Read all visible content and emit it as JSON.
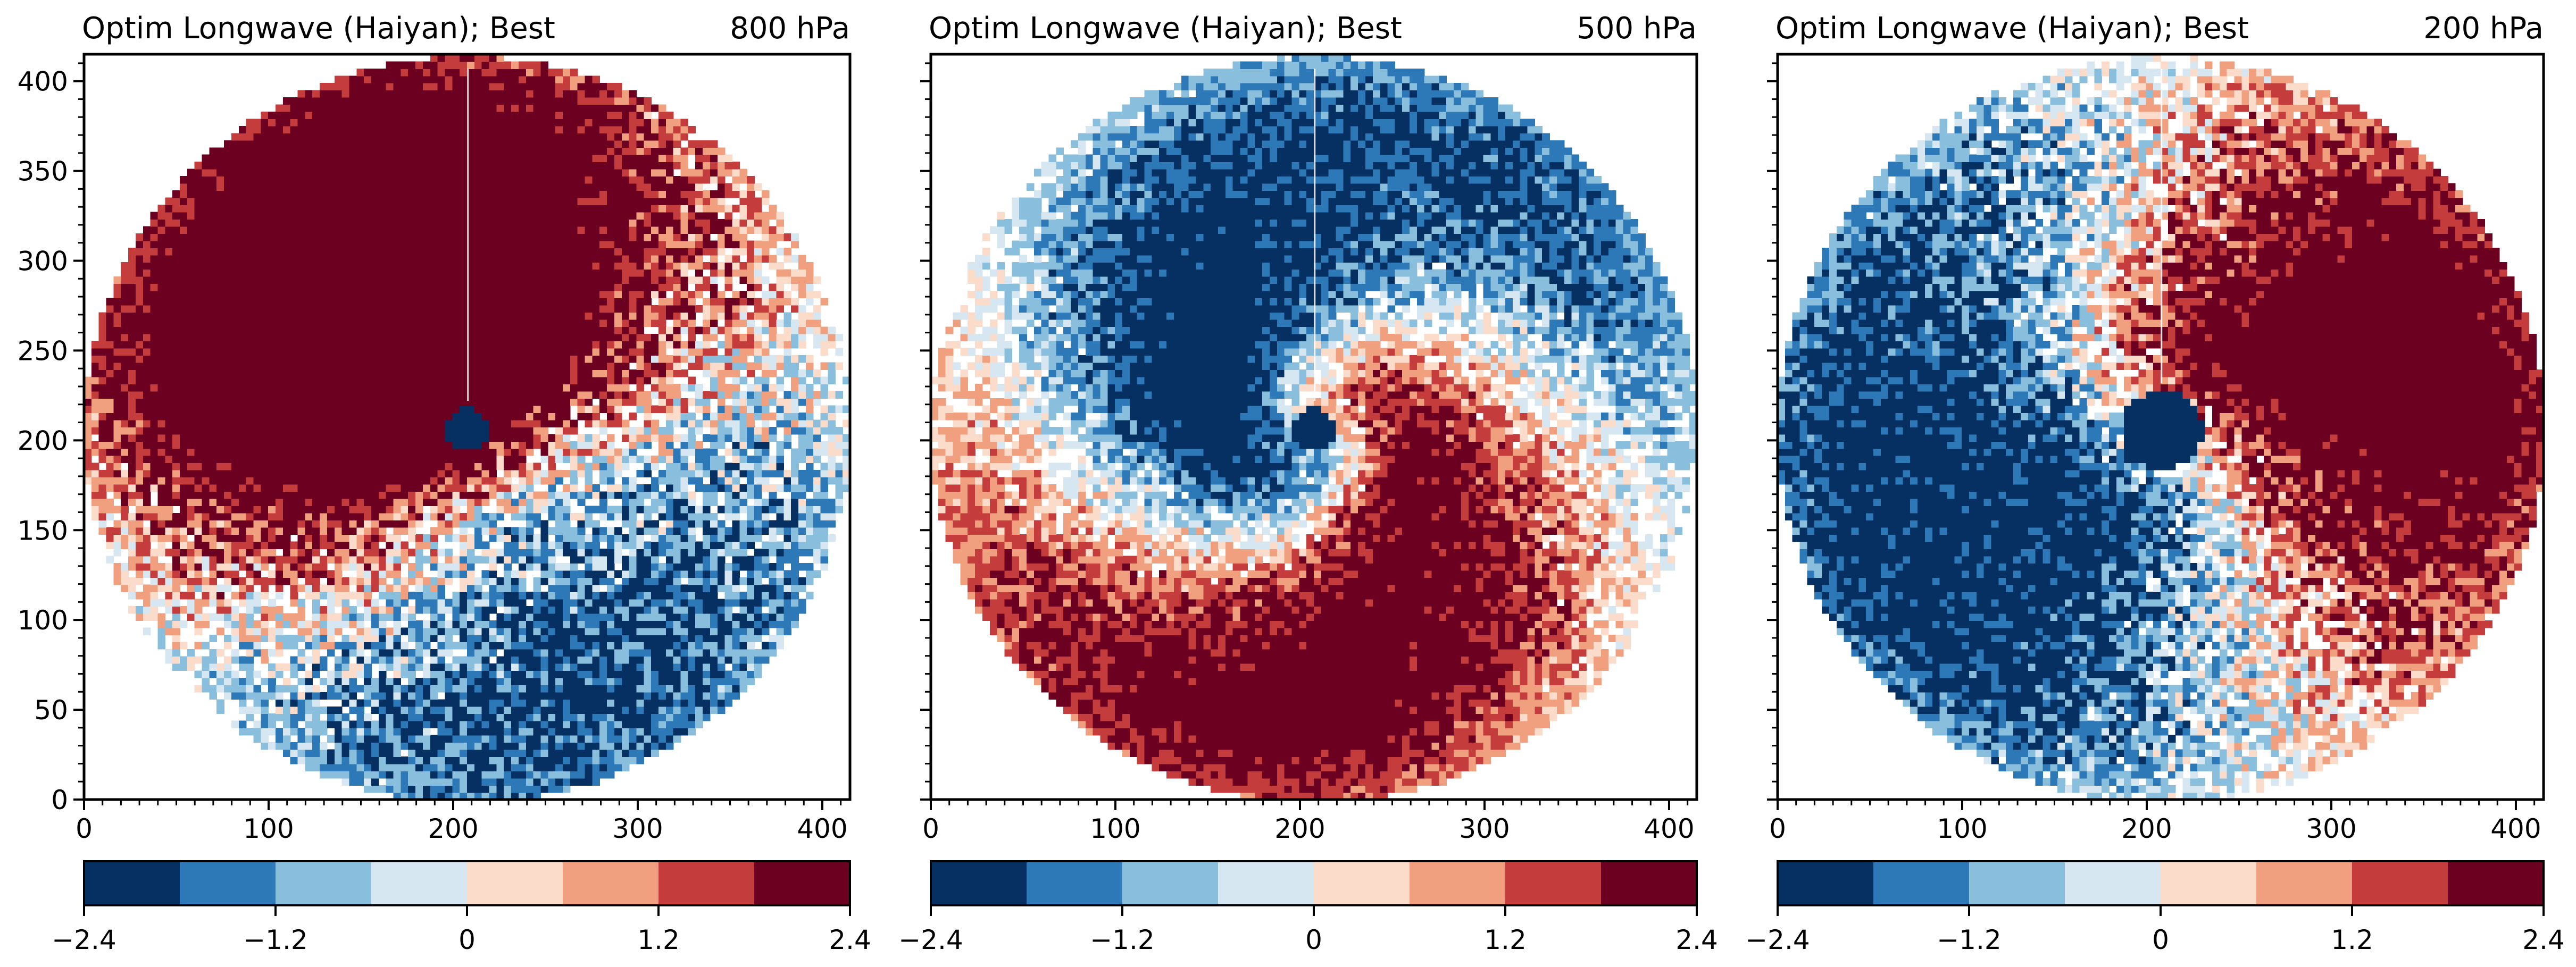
{
  "chart_data": [
    {
      "type": "heatmap",
      "title": "Optim Longwave (Haiyan); Best",
      "level": "800 hPa",
      "xlim": [
        0,
        415
      ],
      "ylim": [
        0,
        415
      ],
      "xticks": [
        "0",
        "100",
        "200",
        "300",
        "400"
      ],
      "yticks": [
        "0",
        "50",
        "100",
        "150",
        "200",
        "250",
        "300",
        "350",
        "400"
      ],
      "center": [
        208,
        206
      ],
      "radius": 208,
      "eye_radius": 12,
      "pattern": {
        "phase": 2.35,
        "swirl": 0.25,
        "amplitude": 2.6,
        "eye_value": -2.4,
        "noise": 0.55,
        "blobs": [
          [
            145,
            230,
            105,
            3.0
          ],
          [
            210,
            245,
            55,
            1.5
          ]
        ]
      },
      "colorbar": {
        "min": -2.4,
        "max": 2.4,
        "ticks": [
          "−2.4",
          "−1.2",
          "0",
          "1.2",
          "2.4"
        ]
      }
    },
    {
      "type": "heatmap",
      "title": "Optim Longwave (Haiyan); Best",
      "level": "500 hPa",
      "xlim": [
        0,
        415
      ],
      "ylim": [
        0,
        415
      ],
      "xticks": [
        "0",
        "100",
        "200",
        "300",
        "400"
      ],
      "yticks": [
        "0",
        "50",
        "100",
        "150",
        "200",
        "250",
        "300",
        "350",
        "400"
      ],
      "center": [
        208,
        206
      ],
      "radius": 208,
      "eye_radius": 12,
      "pattern": {
        "phase": 1.3,
        "swirl": 1.6,
        "amplitude": 2.8,
        "eye_value": -2.4,
        "noise": 0.35,
        "blobs": [
          [
            1.35,
            330,
            90,
            2.5
          ],
          [
            4.4,
            120,
            90,
            -2.2
          ]
        ]
      },
      "colorbar": {
        "min": -2.4,
        "max": 2.4,
        "ticks": [
          "−2.4",
          "−1.2",
          "0",
          "1.2",
          "2.4"
        ]
      }
    },
    {
      "type": "heatmap",
      "title": "Optim Longwave (Haiyan); Best",
      "level": "200 hPa",
      "xlim": [
        0,
        415
      ],
      "ylim": [
        0,
        415
      ],
      "xticks": [
        "0",
        "100",
        "200",
        "300",
        "400"
      ],
      "yticks": [
        "0",
        "50",
        "100",
        "150",
        "200",
        "250",
        "300",
        "350",
        "400"
      ],
      "center": [
        208,
        206
      ],
      "radius": 208,
      "eye_radius": 22,
      "pattern": {
        "phase": 1.4,
        "swirl": 0.5,
        "amplitude": 2.7,
        "eye_value": -2.4,
        "noise": 0.5,
        "blobs": [
          [
            1.5,
            320,
            110,
            -2.8
          ],
          [
            3.9,
            120,
            110,
            2.6
          ]
        ]
      },
      "colorbar": {
        "min": -2.4,
        "max": 2.4,
        "ticks": [
          "−2.4",
          "−1.2",
          "0",
          "1.2",
          "2.4"
        ]
      }
    }
  ],
  "colormap": [
    "#053061",
    "#2d78b6",
    "#89bfdc",
    "#d6e7f1",
    "#fbdccb",
    "#f0a07e",
    "#c43c3c",
    "#6b0020"
  ]
}
